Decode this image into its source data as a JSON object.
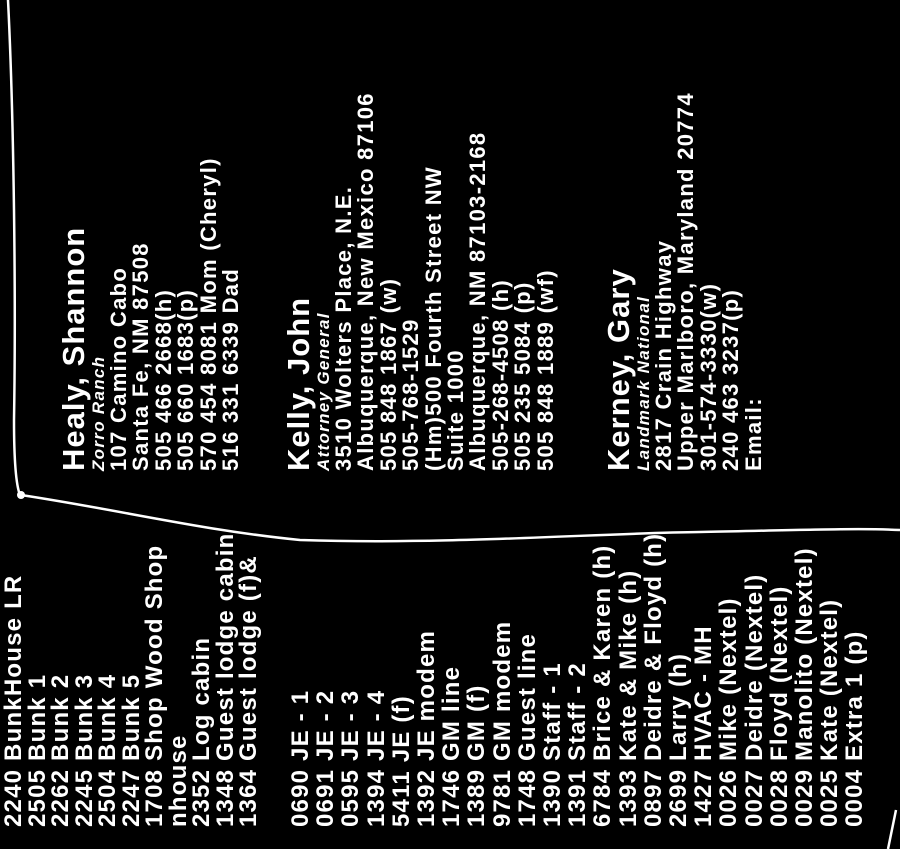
{
  "left_column": {
    "group1": [
      "2240 BunkHouse LR",
      "2505 Bunk 1",
      "2262 Bunk 2",
      "2245 Bunk 3",
      "2504 Bunk 4",
      "2247 Bunk 5",
      "1708 Shop Wood Shop",
      "nhouse",
      "2352 Log cabin",
      "1348 Guest lodge cabin",
      "1364 Guest lodge (f)&"
    ],
    "group2": [
      "0690 JE - 1",
      "0691 JE - 2",
      "0595 JE - 3",
      "1394 JE - 4",
      "5411 JE (f)",
      "1392 JE modem",
      "1746 GM line",
      "1389 GM (f)",
      "9781 GM modem",
      "1748 Guest line",
      "1390 Staff - 1",
      "1391 Staff - 2",
      "6784 Brice & Karen (h)",
      "1393 Kate & Mike (h)",
      "0897 Deidre & Floyd (h)",
      "2699 Larry (h)",
      "1427 HVAC - MH",
      "0026 Mike (Nextel)",
      "0027 Deidre (Nextel)",
      "0028 Floyd (Nextel)",
      "0029 Manolito (Nextel)",
      "0025 Kate (Nextel)",
      "0004 Extra 1 (p)"
    ]
  },
  "contacts": [
    {
      "name": "Healy, Shannon",
      "title": "Zorro Ranch",
      "lines": [
        "107 Camino Cabo",
        "Santa Fe, NM 87508",
        "505 466 2668(h)",
        "505 660 1683(p)",
        "570 454 8081 Mom (Cheryl)",
        "516 331 6339 Dad"
      ]
    },
    {
      "name": "Kelly, John",
      "title": "Attorney General",
      "lines": [
        "3510 Wolters Place, N.E.",
        "Albuquerque, New Mexico 87106",
        "505 848 1867 (w)",
        "505-768-1529",
        "(Hm)500 Fourth Street NW",
        "Suite 1000",
        "Albuquerque, NM 87103-2168",
        "505-268-4508 (h)",
        "505 235 5084 (p)",
        "505 848 1889 (wf)"
      ]
    },
    {
      "name": "Kerney, Gary",
      "title": "Landmark National",
      "lines": [
        "2817 Crain Highway",
        "Upper Marlboro, Maryland 20774",
        "301-574-3330(w)",
        "240 463 3237(p)",
        "Email:"
      ]
    }
  ],
  "colors": {
    "background": "#000000",
    "text": "#ffffff"
  }
}
